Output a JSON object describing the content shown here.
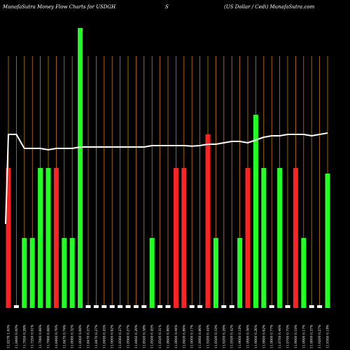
{
  "header": {
    "left": "MunafaSutra  Money Flow  Charts for USDGH",
    "center": "S",
    "right": "(US Dollar / Cedi) MunafaSutra.com"
  },
  "colors": {
    "background": "#000000",
    "up": "#22ff22",
    "down": "#ff2222",
    "neutral": "#ffffff",
    "gridline": "#c87814",
    "line": "#ffffff"
  },
  "chart_data": {
    "type": "bar",
    "title": "MunafaSutra  Money Flow  Charts for USDGH",
    "grid": true,
    "ylim": [
      0,
      100
    ],
    "categories": [
      "11.8279 1.00%",
      "11.8480 0.00%",
      "11.7850 0.26%",
      "11.7250 0.51%",
      "11.7860 0.66%",
      "11.7860 0.66%",
      "11.8460 0.76%",
      "11.8470 0.76%",
      "11.8080 0.32%",
      "11.8000 0.88%",
      "11.8470 0.27%",
      "11.8470 0.27%",
      "11.8490 0.45%",
      "11.9000 0.62%",
      "11.8560 0.27%",
      "11.8560 0.27%",
      "11.8460 0.29%",
      "11.8500 0.38%",
      "11.8500 0.45%",
      "11.8500 0.31%",
      "11.8600 0.86%",
      "11.8800 0.44%",
      "11.8400 0.86%",
      "11.9000 0.17%",
      "11.8900 0.86%",
      "11.9200 0.44%",
      "11.9500 0.18%",
      "11.9200 0.26%",
      "11.9500 0.42%",
      "11.9600 0.18%",
      "11.9800 0.36%",
      "11.9800 0.26%",
      "11.9800 0.62%",
      "11.9800 0.77%",
      "11.8700 0.46%",
      "11.9700 0.75%",
      "11.9800 0.18%",
      "11.9800 0.17%",
      "11.9800 0.37%",
      "11.9200 0.27%",
      "11.9300 0.18%"
    ],
    "bar_colors": [
      "down",
      "neutral",
      "up",
      "up",
      "up",
      "up",
      "down",
      "up",
      "up",
      "up",
      "neutral",
      "neutral",
      "neutral",
      "neutral",
      "neutral",
      "neutral",
      "neutral",
      "neutral",
      "up",
      "neutral",
      "neutral",
      "down",
      "down",
      "neutral",
      "neutral",
      "down",
      "up",
      "neutral",
      "neutral",
      "up",
      "down",
      "up",
      "up",
      "neutral",
      "up",
      "neutral",
      "down",
      "up",
      "neutral",
      "neutral",
      "up"
    ],
    "values": [
      50,
      1,
      25,
      25,
      50,
      50,
      50,
      25,
      25,
      100,
      1,
      1,
      1,
      1,
      1,
      1,
      1,
      1,
      25,
      1,
      1,
      50,
      50,
      1,
      1,
      62,
      25,
      1,
      1,
      25,
      50,
      69,
      50,
      1,
      50,
      1,
      50,
      25,
      1,
      1,
      48
    ],
    "line": [
      62,
      62,
      57,
      57,
      57,
      56.5,
      57,
      57,
      57,
      57.5,
      57.5,
      57.5,
      57.5,
      57.5,
      57.5,
      57.5,
      57.5,
      57.5,
      58,
      58,
      58,
      58,
      58,
      57.8,
      58,
      58.5,
      58.5,
      59,
      59.5,
      59.5,
      59,
      60,
      61,
      61.5,
      61.5,
      62,
      62,
      62,
      61.5,
      62,
      62.5
    ],
    "line_start": 30
  }
}
